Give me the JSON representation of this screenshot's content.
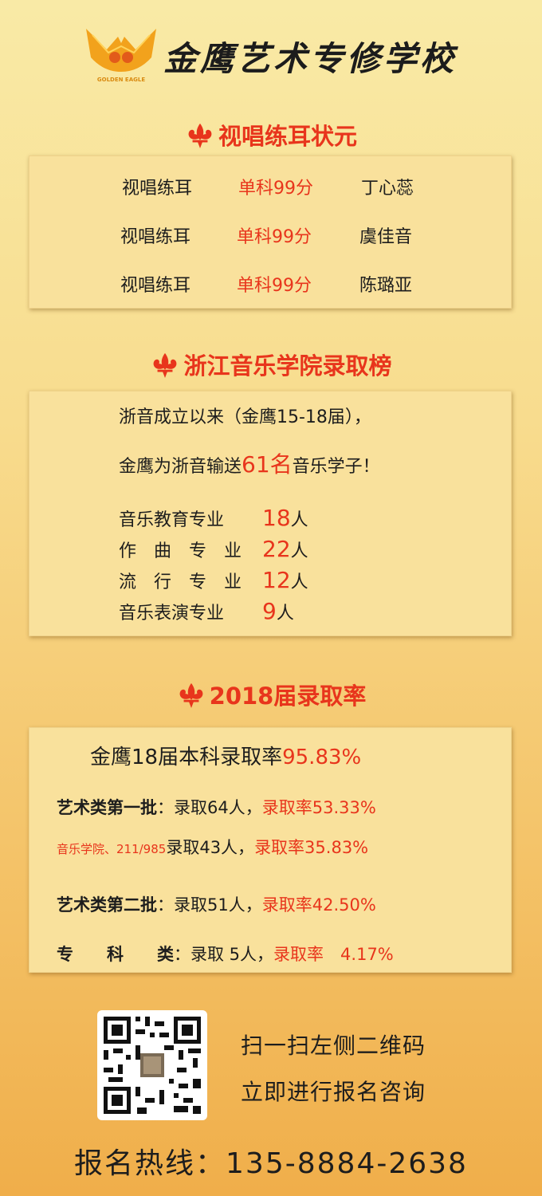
{
  "header": {
    "logo_text": "GOLDEN EAGLE",
    "school_name": "金鹰艺术专修学校"
  },
  "section1": {
    "title": "视唱练耳状元",
    "rows": [
      {
        "subject": "视唱练耳",
        "score": "单科99分",
        "name": "丁心蕊"
      },
      {
        "subject": "视唱练耳",
        "score": "单科99分",
        "name": "虞佳音"
      },
      {
        "subject": "视唱练耳",
        "score": "单科99分",
        "name": "陈璐亚"
      }
    ]
  },
  "section2": {
    "title": "浙江音乐学院录取榜",
    "intro_line1": "浙音成立以来（金鹰15-18届），",
    "intro_line2_prefix": "金鹰为浙音输送",
    "intro_line2_highlight": "61名",
    "intro_line2_suffix": "音乐学子！",
    "majors": [
      {
        "name": "音乐教育专业",
        "count": "18",
        "unit": "人"
      },
      {
        "name": "作　曲　专　业",
        "count": "22",
        "unit": "人"
      },
      {
        "name": "流　行　专　业",
        "count": "12",
        "unit": "人"
      },
      {
        "name": "音乐表演专业",
        "count": "9",
        "unit": "人"
      }
    ]
  },
  "section3": {
    "title": "2018届录取率",
    "headline_prefix": "金鹰18届本科录取率",
    "headline_rate": "95.83%",
    "lines": [
      {
        "label": "艺术类第一批",
        "detail": "：录取64人，",
        "rate_label": "录取率53.33%"
      },
      {
        "label": "音乐学院、211/985",
        "detail": "录取43人，",
        "rate_label": "录取率35.83%"
      },
      {
        "label": "艺术类第二批",
        "detail": "：录取51人，",
        "rate_label": "录取率42.50%"
      },
      {
        "label": "专　　科　　类",
        "detail": "：录取 5人，",
        "rate_label": "录取率　4.17%"
      }
    ]
  },
  "footer": {
    "cta_line1": "扫一扫左侧二维码",
    "cta_line2": "立即进行报名咨询",
    "hotline": "报名热线：135-8884-2638"
  },
  "colors": {
    "accent_red": "#e8351c",
    "card_bg": "#f9e19c"
  }
}
